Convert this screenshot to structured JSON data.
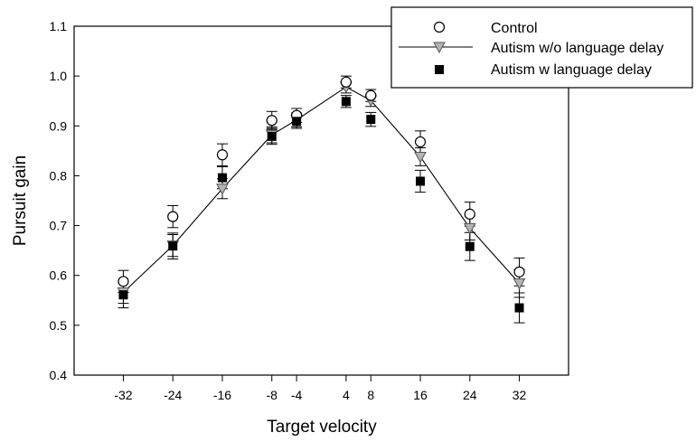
{
  "chart_data": {
    "type": "scatter",
    "title": "",
    "xlabel": "Target velocity",
    "ylabel": "Pursuit gain",
    "x_ticks": [
      -32,
      -24,
      -16,
      -8,
      -4,
      4,
      8,
      16,
      24,
      32
    ],
    "x_tick_labels": [
      "-32",
      "-24",
      "-16",
      "-8",
      "-4",
      "4",
      "8",
      "16",
      "24",
      "32"
    ],
    "y_ticks": [
      0.4,
      0.5,
      0.6,
      0.7,
      0.8,
      0.9,
      1.0,
      1.1
    ],
    "y_tick_labels": [
      "0.4",
      "0.5",
      "0.6",
      "0.7",
      "0.8",
      "0.9",
      "1.0",
      "1.1"
    ],
    "ylim": [
      0.4,
      1.1
    ],
    "grid": false,
    "legend_position": "top-right",
    "series": [
      {
        "name": "Control",
        "marker": "open-circle",
        "line": false,
        "values": [
          0.588,
          0.718,
          0.842,
          0.911,
          0.921,
          0.988,
          0.961,
          0.868,
          0.723,
          0.607
        ],
        "errors": [
          0.022,
          0.022,
          0.022,
          0.018,
          0.014,
          0.012,
          0.012,
          0.022,
          0.024,
          0.028
        ]
      },
      {
        "name": "Autism w/o language delay",
        "marker": "triangle-down-gray",
        "line": true,
        "values": [
          0.566,
          0.66,
          0.774,
          0.882,
          0.912,
          0.978,
          0.951,
          0.838,
          0.695,
          0.584
        ],
        "errors": [
          0.022,
          0.022,
          0.02,
          0.016,
          0.014,
          0.012,
          0.012,
          0.018,
          0.024,
          0.028
        ]
      },
      {
        "name": "Autism w language delay",
        "marker": "filled-square",
        "line": false,
        "values": [
          0.561,
          0.659,
          0.796,
          0.879,
          0.909,
          0.949,
          0.913,
          0.789,
          0.658,
          0.535
        ],
        "errors": [
          0.026,
          0.026,
          0.022,
          0.016,
          0.014,
          0.012,
          0.014,
          0.022,
          0.028,
          0.03
        ]
      }
    ]
  }
}
